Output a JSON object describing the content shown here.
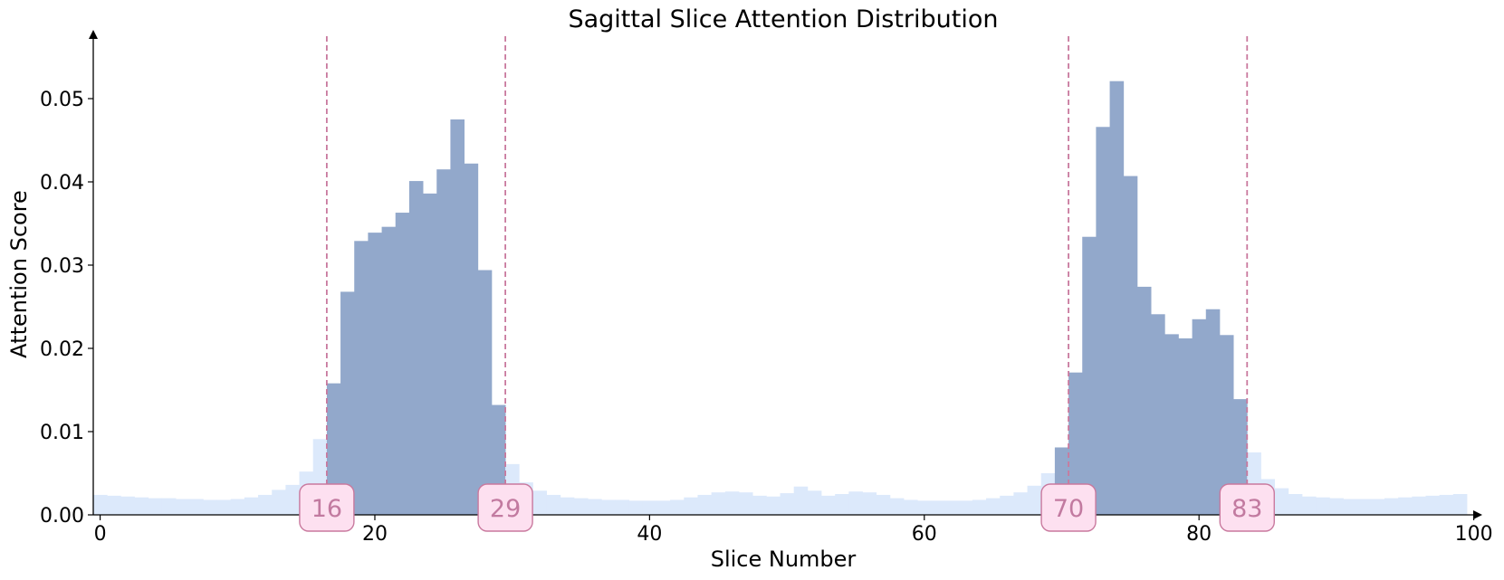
{
  "chart_data": {
    "type": "bar",
    "title": "Sagittal Slice Attention Distribution",
    "xlabel": "Slice Number",
    "ylabel": "Attention Score",
    "xlim": [
      -0.5,
      99.5
    ],
    "ylim": [
      0,
      0.0575
    ],
    "xticks": [
      0,
      20,
      40,
      60,
      80,
      100
    ],
    "yticks": [
      0.0,
      0.01,
      0.02,
      0.03,
      0.04,
      0.05
    ],
    "ytick_labels": [
      "0.00",
      "0.01",
      "0.02",
      "0.03",
      "0.04",
      "0.05"
    ],
    "grid": false,
    "x": [
      0,
      1,
      2,
      3,
      4,
      5,
      6,
      7,
      8,
      9,
      10,
      11,
      12,
      13,
      14,
      15,
      16,
      17,
      18,
      19,
      20,
      21,
      22,
      23,
      24,
      25,
      26,
      27,
      28,
      29,
      30,
      31,
      32,
      33,
      34,
      35,
      36,
      37,
      38,
      39,
      40,
      41,
      42,
      43,
      44,
      45,
      46,
      47,
      48,
      49,
      50,
      51,
      52,
      53,
      54,
      55,
      56,
      57,
      58,
      59,
      60,
      61,
      62,
      63,
      64,
      65,
      66,
      67,
      68,
      69,
      70,
      71,
      72,
      73,
      74,
      75,
      76,
      77,
      78,
      79,
      80,
      81,
      82,
      83,
      84,
      85,
      86,
      87,
      88,
      89,
      90,
      91,
      92,
      93,
      94,
      95,
      96,
      97,
      98,
      99
    ],
    "values": [
      0.0024,
      0.0023,
      0.0022,
      0.0021,
      0.002,
      0.002,
      0.0019,
      0.0019,
      0.0018,
      0.0018,
      0.0019,
      0.0021,
      0.0024,
      0.003,
      0.0036,
      0.0052,
      0.0091,
      0.0158,
      0.0268,
      0.0329,
      0.0339,
      0.0346,
      0.0363,
      0.0401,
      0.0386,
      0.0415,
      0.0475,
      0.0422,
      0.0294,
      0.0132,
      0.0061,
      0.0039,
      0.0029,
      0.0024,
      0.0021,
      0.002,
      0.0019,
      0.0018,
      0.0018,
      0.0017,
      0.0017,
      0.0017,
      0.0018,
      0.0021,
      0.0024,
      0.0027,
      0.0028,
      0.0027,
      0.0023,
      0.0022,
      0.0026,
      0.0034,
      0.0029,
      0.0023,
      0.0025,
      0.0028,
      0.0027,
      0.0024,
      0.002,
      0.0018,
      0.0017,
      0.0017,
      0.0017,
      0.0017,
      0.0018,
      0.002,
      0.0023,
      0.0027,
      0.0035,
      0.005,
      0.0081,
      0.0171,
      0.0334,
      0.0466,
      0.0521,
      0.0407,
      0.0274,
      0.0241,
      0.0217,
      0.0212,
      0.0235,
      0.0247,
      0.0216,
      0.0139,
      0.0075,
      0.0043,
      0.0032,
      0.0025,
      0.0022,
      0.0021,
      0.002,
      0.0019,
      0.0019,
      0.0019,
      0.002,
      0.0021,
      0.0022,
      0.0023,
      0.0024,
      0.0025
    ],
    "highlight_regions": [
      [
        17,
        29
      ],
      [
        70,
        83
      ]
    ],
    "markers": [
      {
        "x": 16.5,
        "label": "16"
      },
      {
        "x": 29.5,
        "label": "29"
      },
      {
        "x": 70.5,
        "label": "70"
      },
      {
        "x": 83.5,
        "label": "83"
      }
    ],
    "colors": {
      "background_bar": "#dce9fb",
      "highlight_bar": "#92a8cb",
      "marker_line": "#c9799e",
      "marker_fill": "#fde0f0",
      "marker_text": "#c27aa0",
      "axis": "#000000"
    }
  }
}
